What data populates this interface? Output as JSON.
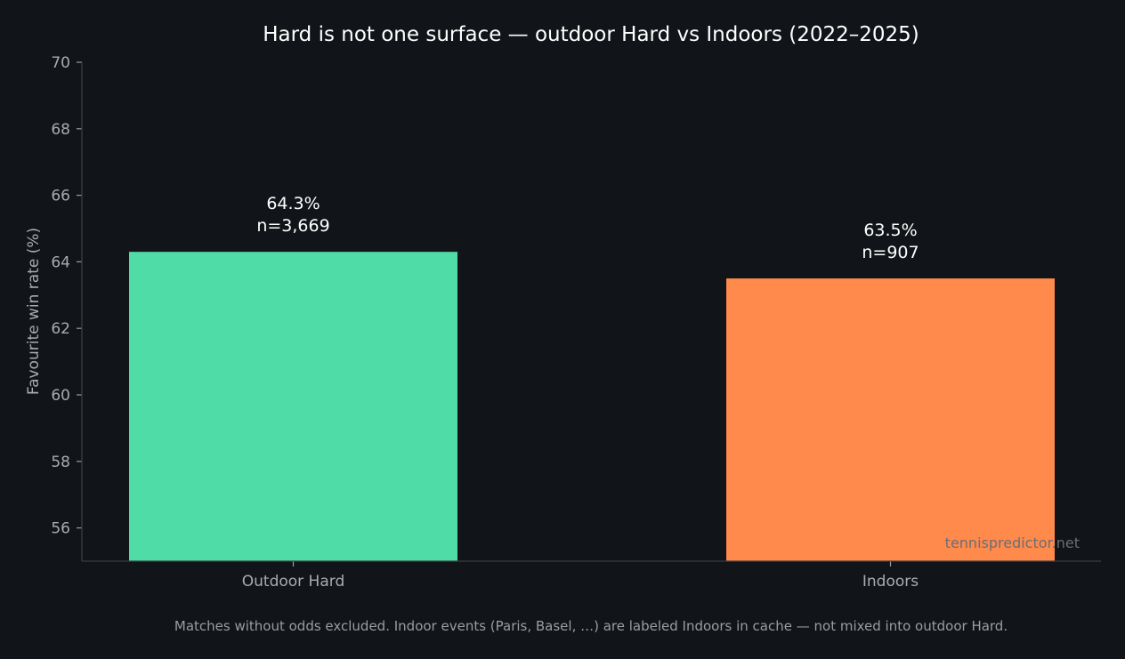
{
  "chart_data": {
    "type": "bar",
    "title": "Hard is not one surface — outdoor Hard vs Indoors (2022–2025)",
    "xlabel": "",
    "ylabel": "Favourite win rate (%)",
    "ylim": [
      55,
      70
    ],
    "yticks": [
      56,
      58,
      60,
      62,
      64,
      66,
      68,
      70
    ],
    "categories": [
      "Outdoor Hard",
      "Indoors"
    ],
    "values": [
      64.3,
      63.5
    ],
    "value_labels": [
      "64.3%",
      "63.5%"
    ],
    "count_labels": [
      "n=3,669",
      "n=907"
    ],
    "colors": [
      "#4fdca6",
      "#ff8a4c"
    ],
    "grid": false,
    "legend": "none"
  },
  "footnote": "Matches without odds excluded. Indoor events (Paris, Basel, …) are labeled Indoors in cache — not mixed into outdoor Hard.",
  "watermark": "tennispredictor.net",
  "colors": {
    "background": "#111418",
    "text": "#ffffff",
    "muted": "#a8abb0"
  }
}
